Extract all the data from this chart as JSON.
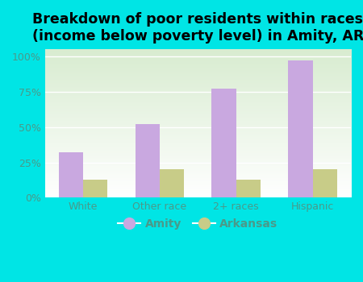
{
  "title": "Breakdown of poor residents within races\n(income below poverty level) in Amity, AR",
  "categories": [
    "White",
    "Other race",
    "2+ races",
    "Hispanic"
  ],
  "amity_values": [
    0.32,
    0.52,
    0.77,
    0.97
  ],
  "arkansas_values": [
    0.13,
    0.2,
    0.13,
    0.2
  ],
  "amity_color": "#c9a8e0",
  "arkansas_color": "#c8cc88",
  "background_outer": "#00e5e5",
  "title_fontsize": 12.5,
  "bar_width": 0.32,
  "yticks": [
    0.0,
    0.25,
    0.5,
    0.75,
    1.0
  ],
  "ytick_labels": [
    "0%",
    "25%",
    "50%",
    "75%",
    "100%"
  ],
  "tick_color": "#4a9a8a",
  "label_color": "#4a9a8a"
}
